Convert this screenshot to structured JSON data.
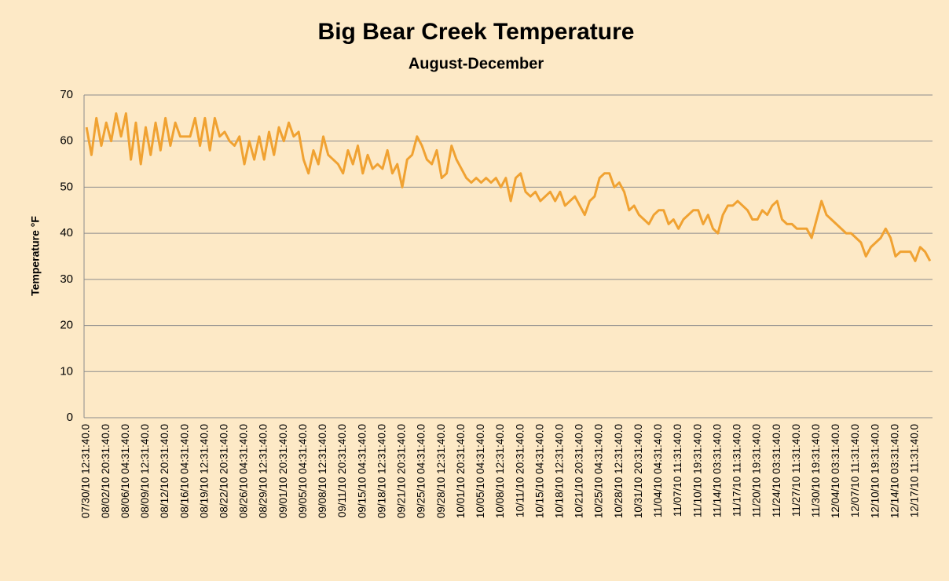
{
  "chart_data": {
    "type": "line",
    "title": "Big Bear Creek Temperature",
    "subtitle": "August-December",
    "y_label": "Temperature °F",
    "categories": [
      "07/30/10 12:31:40.0",
      null,
      null,
      null,
      "08/02/10 20:31:40.0",
      null,
      null,
      null,
      "08/06/10 04:31:40.0",
      null,
      null,
      null,
      "08/09/10 12:31:40.0",
      null,
      null,
      null,
      "08/12/10 20:31:40.0",
      null,
      null,
      null,
      "08/16/10 04:31:40.0",
      null,
      null,
      null,
      "08/19/10 12:31:40.0",
      null,
      null,
      null,
      "08/22/10 20:31:40.0",
      null,
      null,
      null,
      "08/26/10 04:31:40.0",
      null,
      null,
      null,
      "08/29/10 12:31:40.0",
      null,
      null,
      null,
      "09/01/10 20:31:40.0",
      null,
      null,
      null,
      "09/05/10 04:31:40.0",
      null,
      null,
      null,
      "09/08/10 12:31:40.0",
      null,
      null,
      null,
      "09/11/10 20:31:40.0",
      null,
      null,
      null,
      "09/15/10 04:31:40.0",
      null,
      null,
      null,
      "09/18/10 12:31:40.0",
      null,
      null,
      null,
      "09/21/10 20:31:40.0",
      null,
      null,
      null,
      "09/25/10 04:31:40.0",
      null,
      null,
      null,
      "09/28/10 12:31:40.0",
      null,
      null,
      null,
      "10/01/10 20:31:40.0",
      null,
      null,
      null,
      "10/05/10 04:31:40.0",
      null,
      null,
      null,
      "10/08/10 12:31:40.0",
      null,
      null,
      null,
      "10/11/10 20:31:40.0",
      null,
      null,
      null,
      "10/15/10 04:31:40.0",
      null,
      null,
      null,
      "10/18/10 12:31:40.0",
      null,
      null,
      null,
      "10/21/10 20:31:40.0",
      null,
      null,
      null,
      "10/25/10 04:31:40.0",
      null,
      null,
      null,
      "10/28/10 12:31:40.0",
      null,
      null,
      null,
      "10/31/10 20:31:40.0",
      null,
      null,
      null,
      "11/04/10 04:31:40.0",
      null,
      null,
      null,
      "11/07/10 11:31:40.0",
      null,
      null,
      null,
      "11/10/10 19:31:40.0",
      null,
      null,
      null,
      "11/14/10 03:31:40.0",
      null,
      null,
      null,
      "11/17/10 11:31:40.0",
      null,
      null,
      null,
      "11/20/10 19:31:40.0",
      null,
      null,
      null,
      "11/24/10 03:31:40.0",
      null,
      null,
      null,
      "11/27/10 11:31:40.0",
      null,
      null,
      null,
      "11/30/10 19:31:40.0",
      null,
      null,
      null,
      "12/04/10 03:31:40.0",
      null,
      null,
      null,
      "12/07/10 11:31:40.0",
      null,
      null,
      null,
      "12/10/10 19:31:40.0",
      null,
      null,
      null,
      "12/14/10 03:31:40.0",
      null,
      null,
      null,
      "12/17/10 11:31:40.0",
      null,
      null,
      null
    ],
    "values": [
      63,
      57,
      65,
      59,
      64,
      60,
      66,
      61,
      66,
      56,
      64,
      55,
      63,
      57,
      64,
      58,
      65,
      59,
      64,
      61,
      61,
      61,
      65,
      59,
      65,
      58,
      65,
      61,
      62,
      60,
      59,
      61,
      55,
      60,
      56,
      61,
      56,
      62,
      57,
      63,
      60,
      64,
      61,
      62,
      56,
      53,
      58,
      55,
      61,
      57,
      56,
      55,
      53,
      58,
      55,
      59,
      53,
      57,
      54,
      55,
      54,
      58,
      53,
      55,
      50,
      56,
      57,
      61,
      59,
      56,
      55,
      58,
      52,
      53,
      59,
      56,
      54,
      52,
      51,
      52,
      51,
      52,
      51,
      52,
      50,
      52,
      47,
      52,
      53,
      49,
      48,
      49,
      47,
      48,
      49,
      47,
      49,
      46,
      47,
      48,
      46,
      44,
      47,
      48,
      52,
      53,
      53,
      50,
      51,
      49,
      45,
      46,
      44,
      43,
      42,
      44,
      45,
      45,
      42,
      43,
      41,
      43,
      44,
      45,
      45,
      42,
      44,
      41,
      40,
      44,
      46,
      46,
      47,
      46,
      45,
      43,
      43,
      45,
      44,
      46,
      47,
      43,
      42,
      42,
      41,
      41,
      41,
      39,
      43,
      47,
      44,
      43,
      42,
      41,
      40,
      40,
      39,
      38,
      35,
      37,
      38,
      39,
      41,
      39,
      35,
      36,
      36,
      36,
      34,
      37,
      36,
      34
    ],
    "color": "#f0a232",
    "ylim": [
      0,
      70
    ],
    "yticks": [
      0,
      10,
      20,
      30,
      40,
      50,
      60,
      70
    ],
    "grid": true
  }
}
